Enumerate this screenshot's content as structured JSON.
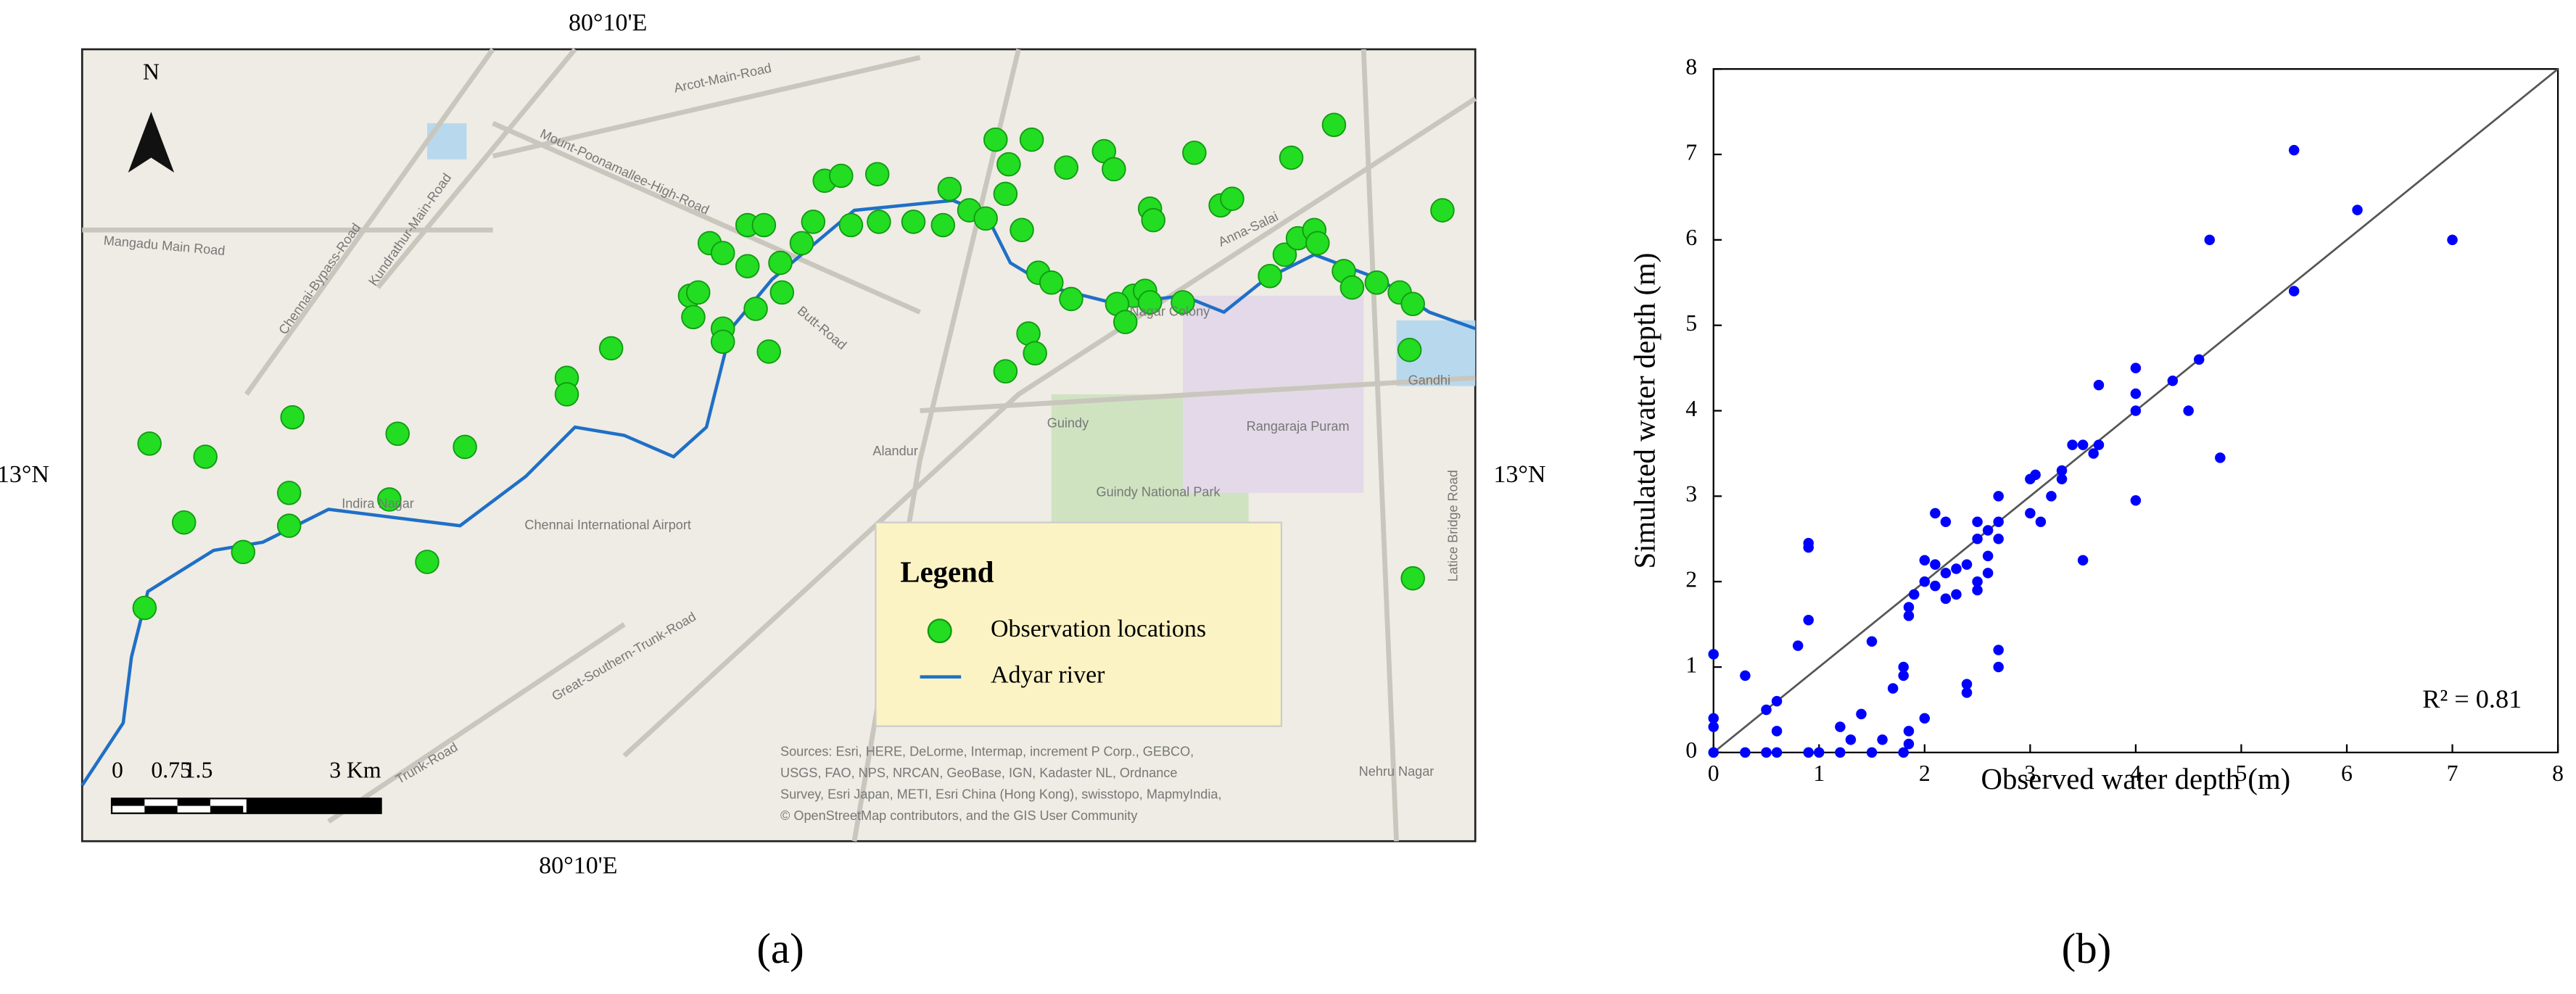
{
  "map": {
    "coord_labels": [
      "80°10'E",
      "80°10'E",
      "13°N",
      "13°N"
    ],
    "north": "N",
    "places": [
      "Arcot-Main-Road",
      "Mount-Poonamallee-High-Road",
      "Kundrathur-Main-Road",
      "Chennai-Bypass-Road",
      "Mangadu Main Road",
      "Butt-Road",
      "Nagar Colony",
      "Guindy",
      "Rangaraja Puram",
      "Alandur",
      "Indira Nagar",
      "Chennai International Airport",
      "Guindy National Park",
      "Great-Southern-Trunk-Road",
      "Gandhi",
      "Nehru Nagar",
      "Anna-Salai",
      "Latice Bridge Road",
      "Trunk-Road"
    ],
    "legend": {
      "title": "Legend",
      "items": [
        "Observation locations",
        "Adyar river"
      ]
    },
    "scale_labels": [
      "0",
      "0.75",
      "1.5",
      "3 Km"
    ],
    "sources": [
      "Sources: Esri, HERE, DeLorme, Intermap, increment P Corp., GEBCO,",
      "USGS, FAO, NPS, NRCAN, GeoBase, IGN, Kadaster NL, Ordnance",
      "Survey, Esri Japan, METI, Esri China (Hong Kong), swisstopo, MapmyIndia,",
      "© OpenStreetMap contributors, and the GIS User Community"
    ],
    "panel_label": "(a)"
  },
  "chart_data": {
    "type": "scatter",
    "panel_label": "(b)",
    "x_label": "Observed water depth (m)",
    "y_label": "Simulated water depth (m)",
    "annotation": "R² = 0.81",
    "color": "#0000ff",
    "line_color": "#555555",
    "xlim": [
      0,
      8
    ],
    "ylim": [
      0,
      8
    ],
    "xticks": [
      0,
      1,
      2,
      3,
      4,
      5,
      6,
      7,
      8
    ],
    "yticks": [
      0,
      1,
      2,
      3,
      4,
      5,
      6,
      7,
      8
    ],
    "x": [
      0,
      0,
      0,
      0,
      0.3,
      0.3,
      0.5,
      0.5,
      0.6,
      0.6,
      0.6,
      0.8,
      0.9,
      0.9,
      0.9,
      0.9,
      1.0,
      1.2,
      1.2,
      1.3,
      1.4,
      1.5,
      1.5,
      1.6,
      1.7,
      1.8,
      1.8,
      1.8,
      1.85,
      1.85,
      1.85,
      1.85,
      1.9,
      2.0,
      2.0,
      2.0,
      2.1,
      2.1,
      2.1,
      2.2,
      2.2,
      2.2,
      2.3,
      2.3,
      2.4,
      2.4,
      2.4,
      2.5,
      2.5,
      2.5,
      2.5,
      2.6,
      2.6,
      2.6,
      2.7,
      2.7,
      2.7,
      2.7,
      2.7,
      3.0,
      3.0,
      3.05,
      3.1,
      3.2,
      3.3,
      3.3,
      3.4,
      3.5,
      3.5,
      3.6,
      3.65,
      3.65,
      4.0,
      4.0,
      4.0,
      4.0,
      4.35,
      4.5,
      4.6,
      4.7,
      4.8,
      5.5,
      5.5,
      6.1,
      7.0
    ],
    "values": [
      1.15,
      0.4,
      0.3,
      0,
      0.9,
      0,
      0.5,
      0,
      0.6,
      0.25,
      0,
      1.25,
      2.45,
      2.4,
      1.55,
      0,
      0,
      0.3,
      0,
      0.15,
      0.45,
      1.3,
      0,
      0.15,
      0.75,
      0.9,
      1.0,
      0,
      0.25,
      0.1,
      1.6,
      1.7,
      1.85,
      2.0,
      2.25,
      0.4,
      1.95,
      2.2,
      2.8,
      2.7,
      2.1,
      1.8,
      1.85,
      2.15,
      2.2,
      0.8,
      0.7,
      2.7,
      2.5,
      1.9,
      2.0,
      2.1,
      2.3,
      2.6,
      3.0,
      2.7,
      2.5,
      1.2,
      1.0,
      3.2,
      2.8,
      3.25,
      2.7,
      3.0,
      3.3,
      3.2,
      3.6,
      3.6,
      2.25,
      3.5,
      3.6,
      4.3,
      4.5,
      4.2,
      4.0,
      2.95,
      4.35,
      4.0,
      4.6,
      6.0,
      3.45,
      7.05,
      5.4,
      6.35,
      6.0
    ]
  }
}
